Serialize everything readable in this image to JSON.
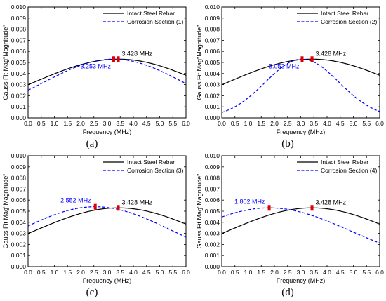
{
  "chart_data": [
    {
      "type": "line",
      "caption": "(a)",
      "xlabel": "Frequency (MHz)",
      "ylabel": "Gauss Fit Mag\"Magnitude\"",
      "xlim": [
        0.0,
        6.0
      ],
      "ylim": [
        0.0,
        0.01
      ],
      "xticks": [
        "0.0",
        "0.5",
        "1.0",
        "1.5",
        "2.0",
        "2.5",
        "3.0",
        "3.5",
        "4.0",
        "4.5",
        "5.0",
        "5.5",
        "6.0"
      ],
      "yticks": [
        "0.000",
        "0.001",
        "0.002",
        "0.003",
        "0.004",
        "0.005",
        "0.006",
        "0.007",
        "0.008",
        "0.009",
        "0.010"
      ],
      "legend_position": "top-right",
      "series": [
        {
          "name": "Intact Steel Rebar",
          "color": "#000000",
          "style": "solid",
          "peak_x": 3.428,
          "peak_y": 0.0053,
          "width": 3.2
        },
        {
          "name": "Corrosion Section (1)",
          "color": "#0000ff",
          "style": "dashed",
          "peak_x": 3.253,
          "peak_y": 0.0053,
          "width": 2.65
        }
      ],
      "annotations": [
        {
          "text": "3.428 MHz",
          "x": 3.428,
          "y": 0.0053,
          "color": "#000000",
          "anchor": "right-above"
        },
        {
          "text": "3.253 MHz",
          "x": 3.253,
          "y": 0.0053,
          "color": "#0000ff",
          "anchor": "left-below"
        }
      ],
      "markers": [
        3.253,
        3.428
      ]
    },
    {
      "type": "line",
      "caption": "(b)",
      "xlabel": "Frequency (MHz)",
      "ylabel": "Gauss Fit Mag\"Magnitude\"",
      "xlim": [
        0.0,
        6.0
      ],
      "ylim": [
        0.0,
        0.01
      ],
      "xticks": [
        "0.0",
        "0.5",
        "1.0",
        "1.5",
        "2.0",
        "2.5",
        "3.0",
        "3.5",
        "4.0",
        "4.5",
        "5.0",
        "5.5",
        "6.0"
      ],
      "yticks": [
        "0.000",
        "0.001",
        "0.002",
        "0.003",
        "0.004",
        "0.005",
        "0.006",
        "0.007",
        "0.008",
        "0.009",
        "0.010"
      ],
      "legend_position": "top-right",
      "series": [
        {
          "name": "Intact Steel Rebar",
          "color": "#000000",
          "style": "solid",
          "peak_x": 3.428,
          "peak_y": 0.0053,
          "width": 3.2
        },
        {
          "name": "Corrosion Section (2)",
          "color": "#0000ff",
          "style": "dashed",
          "peak_x": 3.053,
          "peak_y": 0.0053,
          "width": 1.4
        }
      ],
      "annotations": [
        {
          "text": "3.428 MHz",
          "x": 3.428,
          "y": 0.0053,
          "color": "#000000",
          "anchor": "right-above"
        },
        {
          "text": "3.053 MHz",
          "x": 3.053,
          "y": 0.0053,
          "color": "#0000ff",
          "anchor": "left-below"
        }
      ],
      "markers": [
        3.053,
        3.428
      ]
    },
    {
      "type": "line",
      "caption": "(c)",
      "xlabel": "Frequency (MHz)",
      "ylabel": "Gauss Fit Mag\"Magnitude\"",
      "xlim": [
        0.0,
        6.0
      ],
      "ylim": [
        0.0,
        0.01
      ],
      "xticks": [
        "0.0",
        "0.5",
        "1.0",
        "1.5",
        "2.0",
        "2.5",
        "3.0",
        "3.5",
        "4.0",
        "4.5",
        "5.0",
        "5.5",
        "6.0"
      ],
      "yticks": [
        "0.000",
        "0.001",
        "0.002",
        "0.003",
        "0.004",
        "0.005",
        "0.006",
        "0.007",
        "0.008",
        "0.009",
        "0.010"
      ],
      "legend_position": "top-right",
      "series": [
        {
          "name": "Intact Steel Rebar",
          "color": "#000000",
          "style": "solid",
          "peak_x": 3.428,
          "peak_y": 0.0053,
          "width": 3.2
        },
        {
          "name": "Corrosion Section (3)",
          "color": "#0000ff",
          "style": "dashed",
          "peak_x": 2.552,
          "peak_y": 0.0054,
          "width": 2.9
        }
      ],
      "annotations": [
        {
          "text": "3.428 MHz",
          "x": 3.428,
          "y": 0.0053,
          "color": "#000000",
          "anchor": "right-above"
        },
        {
          "text": "2.552 MHz",
          "x": 2.552,
          "y": 0.0054,
          "color": "#0000ff",
          "anchor": "left-above"
        }
      ],
      "markers": [
        2.552,
        3.428
      ]
    },
    {
      "type": "line",
      "caption": "(d)",
      "xlabel": "Frequency (MHz)",
      "ylabel": "Gauss Fit Mag\"Magnitude\"",
      "xlim": [
        0.0,
        6.0
      ],
      "ylim": [
        0.0,
        0.01
      ],
      "xticks": [
        "0.0",
        "0.5",
        "1.0",
        "1.5",
        "2.0",
        "2.5",
        "3.0",
        "3.5",
        "4.0",
        "4.5",
        "5.0",
        "5.5",
        "6.0"
      ],
      "yticks": [
        "0.000",
        "0.001",
        "0.002",
        "0.003",
        "0.004",
        "0.005",
        "0.006",
        "0.007",
        "0.008",
        "0.009",
        "0.010"
      ],
      "legend_position": "top-right",
      "series": [
        {
          "name": "Intact Steel Rebar",
          "color": "#000000",
          "style": "solid",
          "peak_x": 3.428,
          "peak_y": 0.0053,
          "width": 3.2
        },
        {
          "name": "Corrosion Section (4)",
          "color": "#0000ff",
          "style": "dashed",
          "peak_x": 1.802,
          "peak_y": 0.0053,
          "width": 3.1
        }
      ],
      "annotations": [
        {
          "text": "3.428 MHz",
          "x": 3.428,
          "y": 0.0053,
          "color": "#000000",
          "anchor": "right-above"
        },
        {
          "text": "1.802 MHz",
          "x": 1.802,
          "y": 0.0053,
          "color": "#0000ff",
          "anchor": "left-above"
        }
      ],
      "markers": [
        1.802,
        3.428
      ]
    }
  ]
}
